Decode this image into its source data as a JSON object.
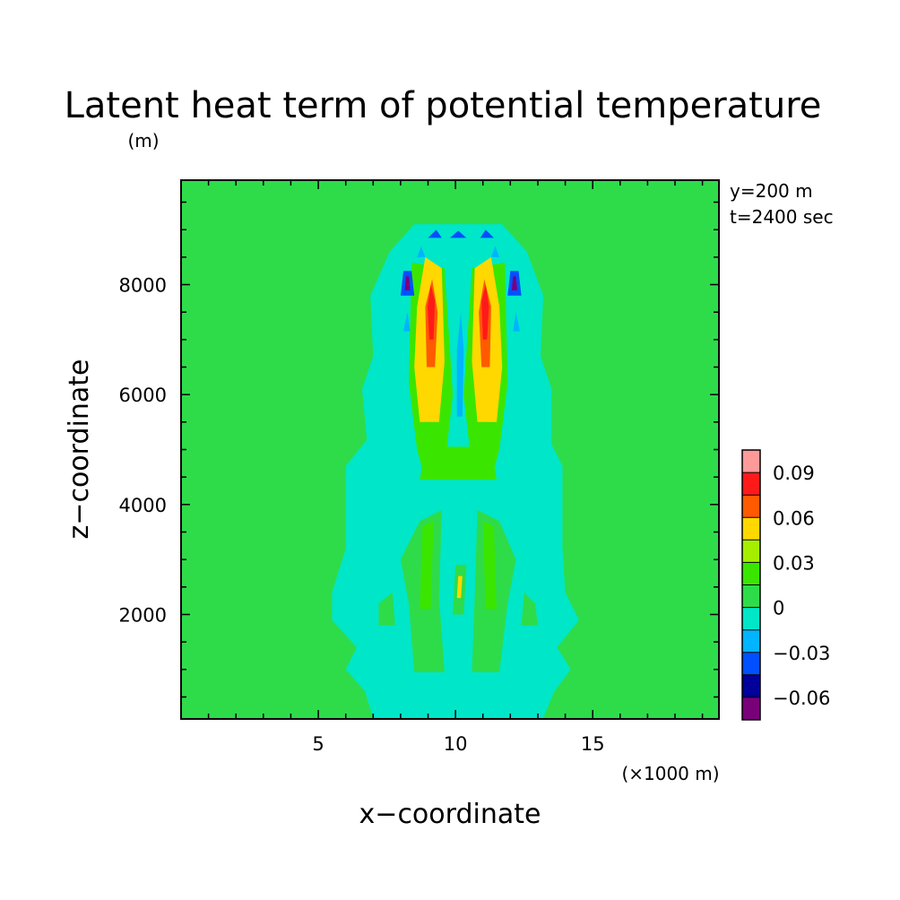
{
  "chart_data": {
    "type": "heatmap",
    "title": "Latent heat term of potential temperature",
    "xlabel": "x−coordinate",
    "ylabel": "z−coordinate",
    "x_unit": "(×1000 m)",
    "y_unit": "(m)",
    "annotations": [
      "y=200 m",
      "t=2400 sec"
    ],
    "x_range": [
      0,
      19.6
    ],
    "y_range": [
      100,
      9900
    ],
    "x_ticks": [
      {
        "value": 5,
        "label": "5"
      },
      {
        "value": 10,
        "label": "10"
      },
      {
        "value": 15,
        "label": "15"
      }
    ],
    "y_ticks": [
      {
        "value": 2000,
        "label": "2000"
      },
      {
        "value": 4000,
        "label": "4000"
      },
      {
        "value": 6000,
        "label": "6000"
      },
      {
        "value": 8000,
        "label": "8000"
      }
    ],
    "colorbar": {
      "levels": [
        -0.075,
        -0.06,
        -0.045,
        -0.03,
        -0.015,
        0,
        0.015,
        0.03,
        0.045,
        0.06,
        0.075,
        0.09,
        0.105
      ],
      "colors": [
        "#7a007a",
        "#00009a",
        "#0050ff",
        "#00b4ff",
        "#00e6c8",
        "#2edc4a",
        "#3ae600",
        "#a6ee00",
        "#ffd800",
        "#ff5a00",
        "#ff1a1a",
        "#ff9a9a"
      ],
      "tick_labels": [
        {
          "value": 0.09,
          "label": "0.09"
        },
        {
          "value": 0.06,
          "label": "0.06"
        },
        {
          "value": 0.03,
          "label": "0.03"
        },
        {
          "value": 0,
          "label": "0"
        },
        {
          "value": -0.03,
          "label": "−0.03"
        },
        {
          "value": -0.06,
          "label": "−0.06"
        }
      ]
    },
    "regions": [
      {
        "name": "lower-cloud-envelope",
        "value": -0.005,
        "polygon": [
          [
            7.0,
            120
          ],
          [
            13.2,
            120
          ],
          [
            13.6,
            600
          ],
          [
            14.2,
            1000
          ],
          [
            13.7,
            1400
          ],
          [
            14.5,
            1900
          ],
          [
            14.0,
            2400
          ],
          [
            13.9,
            3200
          ],
          [
            13.9,
            4700
          ],
          [
            13.4,
            5200
          ],
          [
            6.8,
            5200
          ],
          [
            6.0,
            4700
          ],
          [
            6.0,
            3200
          ],
          [
            5.5,
            2400
          ],
          [
            5.5,
            1900
          ],
          [
            6.4,
            1400
          ],
          [
            6.0,
            1000
          ],
          [
            6.7,
            600
          ]
        ]
      },
      {
        "name": "upper-cloud-envelope",
        "value": -0.005,
        "polygon": [
          [
            6.8,
            5000
          ],
          [
            13.5,
            5000
          ],
          [
            13.5,
            6100
          ],
          [
            13.1,
            6700
          ],
          [
            13.2,
            7800
          ],
          [
            12.6,
            8600
          ],
          [
            11.7,
            9100
          ],
          [
            8.5,
            9100
          ],
          [
            7.6,
            8600
          ],
          [
            6.9,
            7800
          ],
          [
            7.0,
            6700
          ],
          [
            6.6,
            6100
          ]
        ]
      },
      {
        "name": "left-inner-updraft",
        "value": 0.02,
        "polygon": [
          [
            8.9,
            4450
          ],
          [
            9.6,
            4650
          ],
          [
            9.9,
            6000
          ],
          [
            9.6,
            8300
          ],
          [
            8.4,
            8400
          ],
          [
            8.3,
            6200
          ],
          [
            8.6,
            5000
          ]
        ]
      },
      {
        "name": "right-inner-updraft",
        "value": 0.02,
        "polygon": [
          [
            10.6,
            4650
          ],
          [
            11.3,
            4450
          ],
          [
            11.6,
            5000
          ],
          [
            11.9,
            6200
          ],
          [
            11.8,
            8400
          ],
          [
            10.6,
            8300
          ],
          [
            10.3,
            6000
          ]
        ]
      },
      {
        "name": "cloud-base-band",
        "value": 0.02,
        "polygon": [
          [
            8.7,
            4450
          ],
          [
            11.5,
            4450
          ],
          [
            11.3,
            5050
          ],
          [
            8.9,
            5050
          ]
        ]
      },
      {
        "name": "left-yellow-core",
        "value": 0.05,
        "polygon": [
          [
            8.7,
            5500
          ],
          [
            9.4,
            5500
          ],
          [
            9.6,
            6600
          ],
          [
            9.5,
            8300
          ],
          [
            8.9,
            8500
          ],
          [
            8.6,
            7600
          ],
          [
            8.5,
            6500
          ]
        ]
      },
      {
        "name": "right-yellow-core",
        "value": 0.05,
        "polygon": [
          [
            10.8,
            5500
          ],
          [
            11.5,
            5500
          ],
          [
            11.7,
            6500
          ],
          [
            11.6,
            7600
          ],
          [
            11.3,
            8500
          ],
          [
            10.7,
            8300
          ],
          [
            10.6,
            6600
          ]
        ]
      },
      {
        "name": "left-orange-core",
        "value": 0.068,
        "polygon": [
          [
            8.95,
            6500
          ],
          [
            9.25,
            6500
          ],
          [
            9.35,
            7500
          ],
          [
            9.15,
            8100
          ],
          [
            8.9,
            7600
          ]
        ]
      },
      {
        "name": "right-orange-core",
        "value": 0.068,
        "polygon": [
          [
            10.95,
            6500
          ],
          [
            11.25,
            6500
          ],
          [
            11.3,
            7600
          ],
          [
            11.05,
            8100
          ],
          [
            10.85,
            7500
          ]
        ]
      },
      {
        "name": "left-red-core",
        "value": 0.085,
        "polygon": [
          [
            9.05,
            7000
          ],
          [
            9.2,
            7000
          ],
          [
            9.25,
            7700
          ],
          [
            9.1,
            8000
          ],
          [
            8.98,
            7600
          ]
        ]
      },
      {
        "name": "right-red-core",
        "value": 0.085,
        "polygon": [
          [
            11.0,
            7000
          ],
          [
            11.15,
            7000
          ],
          [
            11.22,
            7600
          ],
          [
            11.1,
            8000
          ],
          [
            10.95,
            7700
          ]
        ]
      },
      {
        "name": "central-downdraft",
        "value": -0.02,
        "polygon": [
          [
            10.05,
            5600
          ],
          [
            10.25,
            5600
          ],
          [
            10.3,
            6800
          ],
          [
            10.2,
            7500
          ],
          [
            10.05,
            6800
          ]
        ]
      },
      {
        "name": "top-left-cap",
        "value": -0.035,
        "polygon": [
          [
            9.0,
            8850
          ],
          [
            9.5,
            8850
          ],
          [
            9.3,
            9000
          ]
        ]
      },
      {
        "name": "top-right-cap",
        "value": -0.035,
        "polygon": [
          [
            10.9,
            8850
          ],
          [
            11.4,
            8850
          ],
          [
            11.1,
            9000
          ]
        ]
      },
      {
        "name": "top-center-cap",
        "value": -0.035,
        "polygon": [
          [
            9.8,
            8850
          ],
          [
            10.4,
            8850
          ],
          [
            10.1,
            8980
          ]
        ]
      },
      {
        "name": "left-edge-blue",
        "value": -0.045,
        "polygon": [
          [
            8.0,
            7800
          ],
          [
            8.5,
            7800
          ],
          [
            8.4,
            8250
          ],
          [
            8.1,
            8250
          ]
        ]
      },
      {
        "name": "right-edge-blue",
        "value": -0.045,
        "polygon": [
          [
            11.9,
            7800
          ],
          [
            12.4,
            7800
          ],
          [
            12.3,
            8250
          ],
          [
            12.0,
            8250
          ]
        ]
      },
      {
        "name": "left-edge-darkblue",
        "value": -0.065,
        "polygon": [
          [
            8.15,
            7900
          ],
          [
            8.35,
            7900
          ],
          [
            8.3,
            8150
          ],
          [
            8.2,
            8150
          ]
        ]
      },
      {
        "name": "right-edge-darkblue",
        "value": -0.065,
        "polygon": [
          [
            12.05,
            7900
          ],
          [
            12.25,
            7900
          ],
          [
            12.2,
            8150
          ],
          [
            12.1,
            8150
          ]
        ]
      },
      {
        "name": "left-small-cyan",
        "value": -0.02,
        "polygon": [
          [
            8.6,
            8500
          ],
          [
            8.9,
            8500
          ],
          [
            8.75,
            8700
          ]
        ]
      },
      {
        "name": "right-small-cyan",
        "value": -0.02,
        "polygon": [
          [
            11.3,
            8500
          ],
          [
            11.6,
            8500
          ],
          [
            11.45,
            8700
          ]
        ]
      },
      {
        "name": "left-side-cyan",
        "value": -0.02,
        "polygon": [
          [
            8.1,
            7150
          ],
          [
            8.35,
            7150
          ],
          [
            8.25,
            7500
          ]
        ]
      },
      {
        "name": "right-side-cyan",
        "value": -0.02,
        "polygon": [
          [
            12.1,
            7150
          ],
          [
            12.35,
            7150
          ],
          [
            12.2,
            7500
          ]
        ]
      },
      {
        "name": "lower-left-updraft",
        "value": 0.005,
        "polygon": [
          [
            8.5,
            950
          ],
          [
            9.6,
            950
          ],
          [
            9.4,
            2300
          ],
          [
            9.5,
            3900
          ],
          [
            8.7,
            3700
          ],
          [
            8.0,
            3000
          ],
          [
            8.3,
            2200
          ]
        ]
      },
      {
        "name": "lower-right-updraft",
        "value": 0.005,
        "polygon": [
          [
            10.6,
            950
          ],
          [
            11.6,
            950
          ],
          [
            11.9,
            2200
          ],
          [
            12.2,
            3000
          ],
          [
            11.6,
            3700
          ],
          [
            10.8,
            3900
          ],
          [
            10.7,
            2300
          ]
        ]
      },
      {
        "name": "lower-left-core",
        "value": 0.02,
        "polygon": [
          [
            8.7,
            2100
          ],
          [
            9.1,
            2100
          ],
          [
            9.2,
            3700
          ],
          [
            8.8,
            3600
          ]
        ]
      },
      {
        "name": "lower-right-core",
        "value": 0.02,
        "polygon": [
          [
            11.1,
            2100
          ],
          [
            11.5,
            2100
          ],
          [
            11.4,
            3600
          ],
          [
            11.0,
            3700
          ]
        ]
      },
      {
        "name": "lower-center-column",
        "value": 0.005,
        "polygon": [
          [
            9.9,
            2000
          ],
          [
            10.3,
            2000
          ],
          [
            10.4,
            2900
          ],
          [
            10.0,
            2900
          ]
        ]
      },
      {
        "name": "lower-center-core",
        "value": 0.045,
        "polygon": [
          [
            10.05,
            2300
          ],
          [
            10.2,
            2300
          ],
          [
            10.25,
            2700
          ],
          [
            10.1,
            2700
          ]
        ]
      },
      {
        "name": "lower-left-lobe",
        "value": 0.005,
        "polygon": [
          [
            7.2,
            1800
          ],
          [
            7.8,
            1800
          ],
          [
            7.7,
            2400
          ],
          [
            7.2,
            2200
          ]
        ]
      },
      {
        "name": "lower-right-lobe",
        "value": 0.005,
        "polygon": [
          [
            12.4,
            1800
          ],
          [
            13.0,
            1800
          ],
          [
            12.9,
            2200
          ],
          [
            12.5,
            2400
          ]
        ]
      }
    ]
  }
}
